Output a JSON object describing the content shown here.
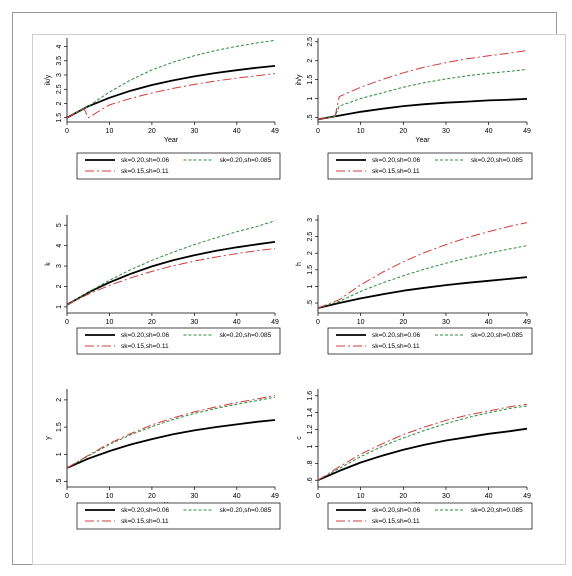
{
  "chart_data": [
    {
      "type": "line",
      "ylabel": "ik/y",
      "xlabel": "Year",
      "xticks": [
        0,
        10,
        20,
        30,
        40,
        49
      ],
      "yticks": [
        1.5,
        2,
        2.5,
        3,
        3.5,
        4
      ],
      "ytick_labels": [
        "1.5",
        "2",
        "2.5",
        "3",
        "3.5",
        "4"
      ],
      "xlim": [
        0,
        49
      ],
      "ylim": [
        1.35,
        4.3
      ],
      "legend": {
        "entries": [
          "sk=0.20,sh=0.06",
          "sk=0.20,sh=0.085",
          "sk=0.15,sh=0.11"
        ]
      },
      "series": [
        {
          "name": "sk=0.20,sh=0.06",
          "x": [
            0,
            4,
            5,
            10,
            15,
            20,
            25,
            30,
            35,
            40,
            45,
            49
          ],
          "y": [
            1.5,
            1.82,
            1.9,
            2.2,
            2.45,
            2.65,
            2.81,
            2.95,
            3.07,
            3.17,
            3.26,
            3.32
          ]
        },
        {
          "name": "sk=0.20,sh=0.085",
          "x": [
            0,
            4,
            5,
            10,
            15,
            20,
            25,
            30,
            35,
            40,
            45,
            49
          ],
          "y": [
            1.5,
            1.82,
            1.9,
            2.4,
            2.83,
            3.18,
            3.45,
            3.68,
            3.86,
            4.01,
            4.13,
            4.22
          ]
        },
        {
          "name": "sk=0.15,sh=0.11",
          "x": [
            0,
            4,
            5,
            10,
            15,
            20,
            25,
            30,
            35,
            40,
            45,
            49
          ],
          "y": [
            1.5,
            1.82,
            1.5,
            1.95,
            2.18,
            2.37,
            2.53,
            2.67,
            2.79,
            2.89,
            2.98,
            3.05
          ]
        }
      ]
    },
    {
      "type": "line",
      "ylabel": "ih/y",
      "xlabel": "Year",
      "xticks": [
        0,
        10,
        20,
        30,
        40,
        49
      ],
      "yticks": [
        0.5,
        1,
        1.5,
        2,
        2.5
      ],
      "ytick_labels": [
        ".5",
        "1",
        "1.5",
        "2",
        "2.5"
      ],
      "xlim": [
        0,
        49
      ],
      "ylim": [
        0.38,
        2.6
      ],
      "legend": {
        "entries": [
          "sk=0.20,sh=0.06",
          "sk=0.20,sh=0.085",
          "sk=0.15,sh=0.11"
        ]
      },
      "series": [
        {
          "name": "sk=0.20,sh=0.06",
          "x": [
            0,
            4,
            5,
            10,
            15,
            20,
            25,
            30,
            35,
            40,
            45,
            49
          ],
          "y": [
            0.45,
            0.53,
            0.55,
            0.65,
            0.73,
            0.8,
            0.85,
            0.89,
            0.92,
            0.95,
            0.97,
            0.99
          ]
        },
        {
          "name": "sk=0.20,sh=0.085",
          "x": [
            0,
            4,
            5,
            10,
            15,
            20,
            25,
            30,
            35,
            40,
            45,
            49
          ],
          "y": [
            0.45,
            0.53,
            0.8,
            1.0,
            1.15,
            1.3,
            1.42,
            1.52,
            1.6,
            1.67,
            1.72,
            1.77
          ]
        },
        {
          "name": "sk=0.15,sh=0.11",
          "x": [
            0,
            4,
            5,
            10,
            15,
            20,
            25,
            30,
            35,
            40,
            45,
            49
          ],
          "y": [
            0.45,
            0.53,
            1.05,
            1.3,
            1.5,
            1.68,
            1.83,
            1.95,
            2.05,
            2.13,
            2.2,
            2.27
          ]
        }
      ]
    },
    {
      "type": "line",
      "ylabel": "k",
      "xlabel": "Year",
      "xticks": [
        0,
        10,
        20,
        30,
        40,
        49
      ],
      "yticks": [
        1,
        2,
        3,
        4,
        5
      ],
      "ytick_labels": [
        "1",
        "2",
        "3",
        "4",
        "5"
      ],
      "xlim": [
        0,
        49
      ],
      "ylim": [
        0.7,
        5.5
      ],
      "legend": {
        "entries": [
          "sk=0.20,sh=0.06",
          "sk=0.20,sh=0.085",
          "sk=0.15,sh=0.11"
        ]
      },
      "series": [
        {
          "name": "sk=0.20,sh=0.06",
          "x": [
            0,
            5,
            10,
            15,
            20,
            25,
            30,
            35,
            40,
            45,
            49
          ],
          "y": [
            1.1,
            1.7,
            2.2,
            2.62,
            2.98,
            3.28,
            3.53,
            3.74,
            3.92,
            4.07,
            4.18
          ]
        },
        {
          "name": "sk=0.20,sh=0.085",
          "x": [
            0,
            5,
            10,
            15,
            20,
            25,
            30,
            35,
            40,
            45,
            49
          ],
          "y": [
            1.1,
            1.72,
            2.3,
            2.82,
            3.28,
            3.68,
            4.05,
            4.38,
            4.68,
            4.95,
            5.22
          ]
        },
        {
          "name": "sk=0.15,sh=0.11",
          "x": [
            0,
            5,
            10,
            15,
            20,
            25,
            30,
            35,
            40,
            45,
            49
          ],
          "y": [
            1.1,
            1.62,
            2.05,
            2.42,
            2.74,
            3.01,
            3.24,
            3.44,
            3.61,
            3.76,
            3.86
          ]
        }
      ]
    },
    {
      "type": "line",
      "ylabel": "h",
      "xlabel": "Year",
      "xticks": [
        0,
        10,
        20,
        30,
        40,
        49
      ],
      "yticks": [
        0.5,
        1,
        1.5,
        2,
        2.5,
        3
      ],
      "ytick_labels": [
        ".5",
        "1",
        "1.5",
        "2",
        "2.5",
        "3"
      ],
      "xlim": [
        0,
        49
      ],
      "ylim": [
        0.2,
        3.15
      ],
      "legend": {
        "entries": [
          "sk=0.20,sh=0.06",
          "sk=0.20,sh=0.085",
          "sk=0.15,sh=0.11"
        ]
      },
      "series": [
        {
          "name": "sk=0.20,sh=0.06",
          "x": [
            0,
            5,
            10,
            15,
            20,
            25,
            30,
            35,
            40,
            45,
            49
          ],
          "y": [
            0.35,
            0.5,
            0.64,
            0.76,
            0.87,
            0.96,
            1.04,
            1.11,
            1.17,
            1.23,
            1.28
          ]
        },
        {
          "name": "sk=0.20,sh=0.085",
          "x": [
            0,
            5,
            10,
            15,
            20,
            25,
            30,
            35,
            40,
            45,
            49
          ],
          "y": [
            0.35,
            0.55,
            0.85,
            1.1,
            1.32,
            1.52,
            1.7,
            1.86,
            2.0,
            2.13,
            2.23
          ]
        },
        {
          "name": "sk=0.15,sh=0.11",
          "x": [
            0,
            5,
            10,
            15,
            20,
            25,
            30,
            35,
            40,
            45,
            49
          ],
          "y": [
            0.35,
            0.6,
            1.05,
            1.42,
            1.74,
            2.02,
            2.26,
            2.47,
            2.65,
            2.81,
            2.92
          ]
        }
      ]
    },
    {
      "type": "line",
      "ylabel": "y",
      "xlabel": "Year",
      "xticks": [
        0,
        10,
        20,
        30,
        40,
        49
      ],
      "yticks": [
        0.5,
        1,
        1.5,
        2
      ],
      "ytick_labels": [
        ".5",
        "1",
        "1.5",
        "2"
      ],
      "xlim": [
        0,
        49
      ],
      "ylim": [
        0.4,
        2.2
      ],
      "legend": {
        "entries": [
          "sk=0.20,sh=0.06",
          "sk=0.20,sh=0.085",
          "sk=0.15,sh=0.11"
        ]
      },
      "series": [
        {
          "name": "sk=0.20,sh=0.06",
          "x": [
            0,
            5,
            10,
            15,
            20,
            25,
            30,
            35,
            40,
            45,
            49
          ],
          "y": [
            0.75,
            0.92,
            1.06,
            1.18,
            1.28,
            1.37,
            1.44,
            1.5,
            1.55,
            1.6,
            1.63
          ]
        },
        {
          "name": "sk=0.20,sh=0.085",
          "x": [
            0,
            5,
            10,
            15,
            20,
            25,
            30,
            35,
            40,
            45,
            49
          ],
          "y": [
            0.75,
            0.97,
            1.18,
            1.36,
            1.51,
            1.64,
            1.75,
            1.84,
            1.92,
            1.99,
            2.05
          ]
        },
        {
          "name": "sk=0.15,sh=0.11",
          "x": [
            0,
            5,
            10,
            15,
            20,
            25,
            30,
            35,
            40,
            45,
            49
          ],
          "y": [
            0.75,
            0.98,
            1.2,
            1.38,
            1.54,
            1.67,
            1.78,
            1.87,
            1.95,
            2.02,
            2.08
          ]
        }
      ]
    },
    {
      "type": "line",
      "ylabel": "c",
      "xlabel": "Year",
      "xticks": [
        0,
        10,
        20,
        30,
        40,
        49
      ],
      "yticks": [
        0.6,
        0.8,
        1,
        1.2,
        1.4,
        1.6
      ],
      "ytick_labels": [
        ".6",
        ".8",
        "1",
        "1.2",
        "1.4",
        "1.6"
      ],
      "xlim": [
        0,
        49
      ],
      "ylim": [
        0.52,
        1.68
      ],
      "legend": {
        "entries": [
          "sk=0.20,sh=0.06",
          "sk=0.20,sh=0.085",
          "sk=0.15,sh=0.11"
        ]
      },
      "series": [
        {
          "name": "sk=0.20,sh=0.06",
          "x": [
            0,
            5,
            10,
            15,
            20,
            25,
            30,
            35,
            40,
            45,
            49
          ],
          "y": [
            0.6,
            0.71,
            0.81,
            0.89,
            0.96,
            1.02,
            1.07,
            1.11,
            1.15,
            1.18,
            1.21
          ]
        },
        {
          "name": "sk=0.20,sh=0.085",
          "x": [
            0,
            5,
            10,
            15,
            20,
            25,
            30,
            35,
            40,
            45,
            49
          ],
          "y": [
            0.6,
            0.74,
            0.88,
            1.0,
            1.1,
            1.19,
            1.27,
            1.34,
            1.4,
            1.45,
            1.48
          ]
        },
        {
          "name": "sk=0.15,sh=0.11",
          "x": [
            0,
            5,
            10,
            15,
            20,
            25,
            30,
            35,
            40,
            45,
            49
          ],
          "y": [
            0.6,
            0.76,
            0.91,
            1.03,
            1.14,
            1.23,
            1.31,
            1.37,
            1.42,
            1.47,
            1.5
          ]
        }
      ]
    }
  ],
  "style": {
    "series_colors": [
      "#000000",
      "#2e8b3e",
      "#d23c3c"
    ],
    "series_dash": [
      "",
      "3,2",
      "9,3,2,3"
    ],
    "series_width": [
      1.8,
      1,
      1
    ]
  }
}
